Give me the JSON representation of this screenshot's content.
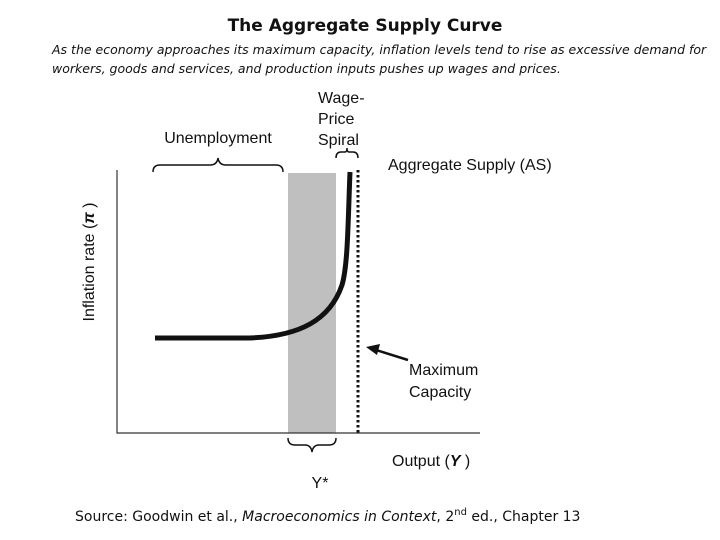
{
  "header": {
    "title": "The Aggregate Supply Curve",
    "subtitle": [
      "As the economy approaches its maximum capacity, inflation levels tend to rise as excessive demand for",
      "workers, goods and services, and production inputs pushes up wages and prices."
    ]
  },
  "diagram": {
    "unemployment": "Unemployment",
    "wage_price_spiral": [
      "Wage-",
      "Price",
      "Spiral"
    ],
    "curve_label": "Aggregate Supply (AS)",
    "y_axis": {
      "text": "Inflation rate (",
      "symbol": "π",
      "close": " )"
    },
    "max_capacity": [
      "Maximum",
      "Capacity"
    ],
    "y_star": "Y*",
    "x_axis": {
      "text": "Output (",
      "symbol": "Y",
      "close": " )"
    }
  },
  "source": {
    "prefix": "Source: Goodwin et al., ",
    "book": "Macroeconomics in Context",
    "middle": ", 2",
    "sup": "nd",
    "suffix": " ed., Chapter 13"
  }
}
